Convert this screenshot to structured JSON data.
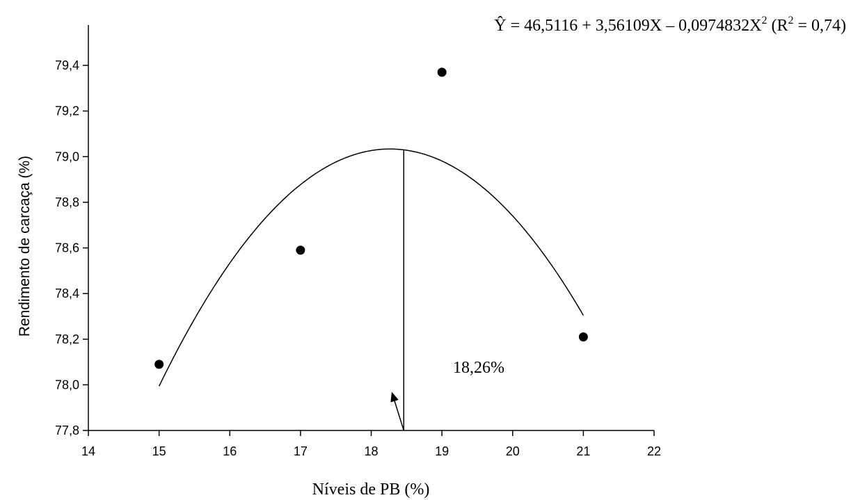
{
  "chart_data": {
    "type": "scatter",
    "xlabel": "Níveis de PB (%)",
    "ylabel": "Rendimento de carcaça (%)",
    "xlim": [
      14,
      22
    ],
    "ylim": [
      77.8,
      79.6
    ],
    "x_ticks": [
      14,
      15,
      16,
      17,
      18,
      19,
      20,
      21,
      22
    ],
    "x_tick_labels": [
      "14",
      "15",
      "16",
      "17",
      "18",
      "19",
      "20",
      "21",
      "22"
    ],
    "y_ticks": [
      77.8,
      78.0,
      78.2,
      78.4,
      78.6,
      78.8,
      79.0,
      79.2,
      79.4
    ],
    "y_tick_labels": [
      "77,8",
      "78,0",
      "78,2",
      "78,4",
      "78,6",
      "78,8",
      "79,0",
      "79,2",
      "79,4"
    ],
    "grid": false,
    "series": [
      {
        "kind": "points",
        "marker": "filled-circle",
        "color": "#000000",
        "x": [
          15,
          17,
          19,
          21
        ],
        "y": [
          78.09,
          78.59,
          79.37,
          78.21
        ]
      },
      {
        "kind": "fitted-quadratic",
        "color": "#000000",
        "coefficients": {
          "a": 46.5116,
          "b": 3.56109,
          "c": -0.0974832
        },
        "x_range": [
          15,
          21
        ]
      }
    ],
    "equation": {
      "lhs": "Ŷ",
      "body": " = 46,5116 + 3,56109X – 0,0974832X",
      "exp": "2",
      "r2_open": " (R",
      "r2_exp": "2",
      "r2_close": " = 0,74)"
    },
    "annotation": {
      "text": "18,26%",
      "x": 18.46,
      "arrow_target": {
        "x": 19.25,
        "y": 78.0
      }
    }
  }
}
